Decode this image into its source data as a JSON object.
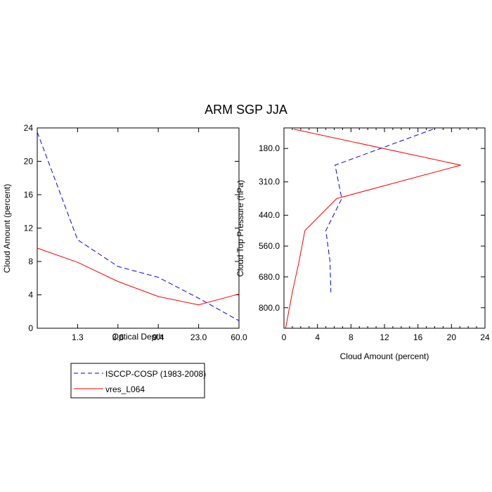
{
  "title": "ARM SGP JJA",
  "colors": {
    "obs": "#0000ff",
    "model": "#ff0000",
    "axis": "#000000"
  },
  "legend": {
    "placement": "bottom-left, below left panel",
    "entries": [
      {
        "label": "ISCCP-COSP (1983-2008)",
        "color": "#0000ff",
        "dash": "dashed"
      },
      {
        "label": "vres_L064",
        "color": "#ff0000",
        "dash": "solid"
      }
    ]
  },
  "chart_data": [
    {
      "type": "line",
      "xlabel": "Optical Depth",
      "ylabel": "Cloud Amount (percent)",
      "x_tick_labels": [
        "1.3",
        "3.6",
        "9.4",
        "23.0",
        "60.0"
      ],
      "y_tick_labels": [
        "0",
        "4",
        "8",
        "12",
        "16",
        "20",
        "24"
      ],
      "ylim": [
        0,
        24
      ],
      "x_positions": [
        0,
        1,
        2,
        3,
        4,
        5
      ],
      "series": [
        {
          "name": "ISCCP-COSP (1983-2008)",
          "color": "#0000ff",
          "dash": "dashed",
          "values": [
            23.5,
            10.6,
            7.4,
            6.1,
            3.6,
            0.9
          ]
        },
        {
          "name": "vres_L064",
          "color": "#ff0000",
          "dash": "solid",
          "values": [
            9.6,
            7.9,
            5.6,
            3.8,
            2.8,
            4.1
          ]
        }
      ]
    },
    {
      "type": "line",
      "xlabel": "Cloud Amount (percent)",
      "ylabel": "Cloud Top Pressure (hPa)",
      "x_tick_labels": [
        "0",
        "4",
        "8",
        "12",
        "16",
        "20",
        "24"
      ],
      "xlim": [
        0,
        24
      ],
      "y_tick_labels": [
        "180.0",
        "310.0",
        "440.0",
        "560.0",
        "680.0",
        "800.0"
      ],
      "ylim": [
        100,
        880
      ],
      "y_reversed": true,
      "series": [
        {
          "name": "ISCCP-COSP (1983-2008)",
          "color": "#0000ff",
          "dash": "dashed",
          "x": [
            17.8,
            6.1,
            6.9,
            5.0,
            5.5,
            5.6
          ],
          "y": [
            105,
            245,
            375,
            500,
            620,
            740
          ]
        },
        {
          "name": "vres_L064",
          "color": "#ff0000",
          "dash": "solid",
          "x": [
            1.2,
            21.1,
            6.3,
            2.5,
            1.8,
            1.0,
            0.2
          ],
          "y": [
            105,
            245,
            375,
            500,
            620,
            740,
            880
          ]
        }
      ]
    }
  ]
}
